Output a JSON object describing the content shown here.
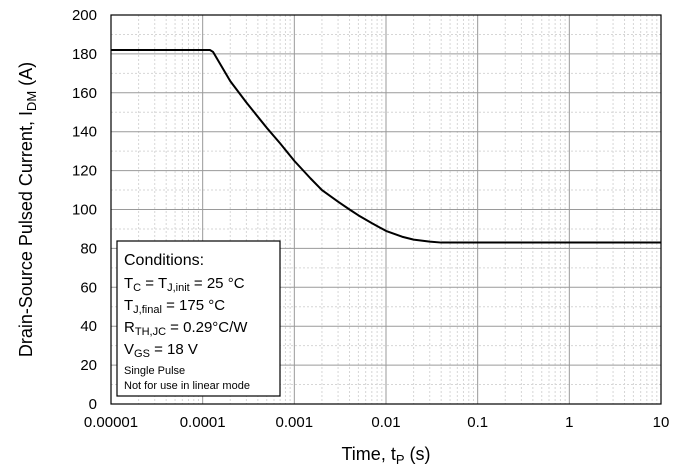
{
  "chart_data": {
    "type": "line",
    "xscale": "log",
    "xlim": [
      1e-05,
      10
    ],
    "ylim": [
      0,
      200
    ],
    "x_ticks": [
      1e-05,
      0.0001,
      0.001,
      0.01,
      0.1,
      1,
      10
    ],
    "x_tick_labels": [
      "0.00001",
      "0.0001",
      "0.001",
      "0.01",
      "0.1",
      "1",
      "10"
    ],
    "y_ticks": [
      0,
      20,
      40,
      60,
      80,
      100,
      120,
      140,
      160,
      180,
      200
    ],
    "y_tick_labels": [
      "0",
      "20",
      "40",
      "60",
      "80",
      "100",
      "120",
      "140",
      "160",
      "180",
      "200"
    ],
    "xlabel": {
      "prefix": "Time, t",
      "sub": "P",
      "suffix": " (s)"
    },
    "ylabel": {
      "prefix": "Drain-Source Pulsed Current, I",
      "sub": "DM",
      "suffix": " (A)"
    },
    "grid": true,
    "series": [
      {
        "color": "#000000",
        "x": [
          1e-05,
          0.00012,
          0.00013,
          0.0002,
          0.0003,
          0.0005,
          0.0007,
          0.001,
          0.0015,
          0.002,
          0.003,
          0.004,
          0.005,
          0.007,
          0.01,
          0.015,
          0.02,
          0.03,
          0.04,
          0.1,
          1,
          10
        ],
        "y": [
          182,
          182,
          181,
          166,
          155,
          142,
          134,
          125,
          116,
          110,
          104,
          100,
          97,
          93,
          89,
          86,
          84.5,
          83.5,
          83,
          83,
          83,
          83
        ]
      }
    ],
    "annotation": {
      "title": "Conditions:",
      "lines": [
        {
          "parts": [
            [
              "T",
              "n"
            ],
            [
              "C",
              "s"
            ],
            [
              " = T",
              "n"
            ],
            [
              "J,init",
              "s"
            ],
            [
              " = 25 °C",
              "n"
            ]
          ]
        },
        {
          "parts": [
            [
              "T",
              "n"
            ],
            [
              "J,final",
              "s"
            ],
            [
              " = 175 °C",
              "n"
            ]
          ]
        },
        {
          "parts": [
            [
              "R",
              "n"
            ],
            [
              "TH,JC",
              "s"
            ],
            [
              " = 0.29°C/W",
              "n"
            ]
          ]
        },
        {
          "parts": [
            [
              "V",
              "n"
            ],
            [
              "GS",
              "s"
            ],
            [
              " = 18 V",
              "n"
            ]
          ]
        }
      ],
      "small_lines": [
        "Single Pulse",
        "Not for use in linear mode"
      ]
    }
  }
}
